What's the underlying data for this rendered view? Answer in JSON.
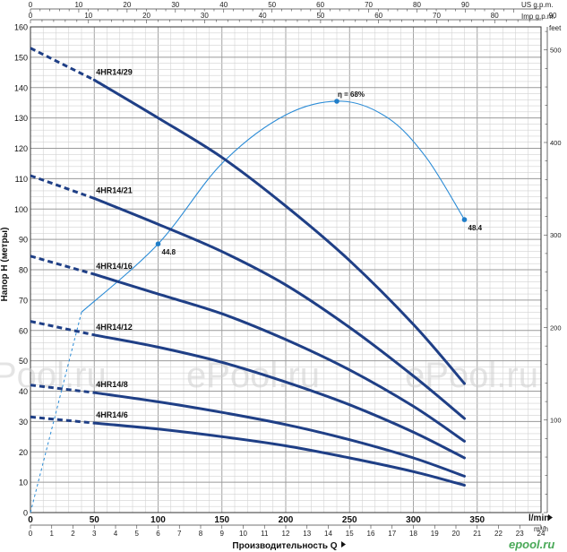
{
  "chart_data": {
    "type": "line",
    "xlabel": "Производительность Q",
    "ylabel": "Напор H (метры)",
    "x_unit_bottom": "l/min",
    "x_unit_m3h": "m³/h",
    "us_label": "US g.p.m.",
    "imp_label": "Imp g.p.m.",
    "feet_label": "feet",
    "xlim_lmin": [
      0,
      400
    ],
    "ylim": [
      0,
      160
    ],
    "grid": true,
    "x_ticks_lmin": [
      "0",
      "50",
      "100",
      "150",
      "200",
      "250",
      "300",
      "350"
    ],
    "y_ticks": [
      "0",
      "10",
      "20",
      "30",
      "40",
      "50",
      "60",
      "70",
      "80",
      "90",
      "100",
      "110",
      "120",
      "130",
      "140",
      "150",
      "160"
    ],
    "feet_ticks": [
      "100",
      "200",
      "300",
      "400",
      "500"
    ],
    "us_ticks": [
      "0",
      "10",
      "20",
      "30",
      "40",
      "50",
      "60",
      "70",
      "80",
      "90"
    ],
    "imp_ticks": [
      "0",
      "10",
      "20",
      "30",
      "40",
      "50",
      "60",
      "70",
      "80",
      "90"
    ],
    "m3h_ticks": [
      "0",
      "1",
      "2",
      "3",
      "4",
      "5",
      "6",
      "7",
      "8",
      "9",
      "10",
      "11",
      "12",
      "13",
      "14",
      "15",
      "16",
      "17",
      "18",
      "19",
      "20",
      "21",
      "22",
      "23",
      "24"
    ],
    "series": [
      {
        "name": "4HR14/29",
        "dashed": {
          "x": [
            0,
            50
          ],
          "y": [
            153,
            142.5
          ]
        },
        "solid": {
          "x": [
            50,
            100,
            150,
            200,
            250,
            300,
            340
          ],
          "y": [
            142.5,
            130,
            117,
            101,
            83,
            62,
            42.5
          ]
        }
      },
      {
        "name": "4HR14/21",
        "dashed": {
          "x": [
            0,
            50
          ],
          "y": [
            111,
            103.5
          ]
        },
        "solid": {
          "x": [
            50,
            100,
            150,
            200,
            250,
            300,
            340
          ],
          "y": [
            103.5,
            95,
            86,
            75,
            61,
            45,
            31
          ]
        }
      },
      {
        "name": "4HR14/16",
        "dashed": {
          "x": [
            0,
            50
          ],
          "y": [
            84.5,
            78.5
          ]
        },
        "solid": {
          "x": [
            50,
            100,
            150,
            200,
            250,
            300,
            340
          ],
          "y": [
            78.5,
            72,
            65.5,
            57,
            47,
            35,
            23.5
          ]
        }
      },
      {
        "name": "4HR14/12",
        "dashed": {
          "x": [
            0,
            50
          ],
          "y": [
            63,
            58.5
          ]
        },
        "solid": {
          "x": [
            50,
            100,
            150,
            200,
            250,
            300,
            340
          ],
          "y": [
            58.5,
            54.5,
            49.5,
            43,
            35.5,
            26.5,
            18
          ]
        }
      },
      {
        "name": "4HR14/8",
        "dashed": {
          "x": [
            0,
            50
          ],
          "y": [
            42,
            39.5
          ]
        },
        "solid": {
          "x": [
            50,
            100,
            150,
            200,
            250,
            300,
            340
          ],
          "y": [
            39.5,
            36.5,
            33,
            29,
            24,
            18,
            12
          ]
        }
      },
      {
        "name": "4HR14/6",
        "dashed": {
          "x": [
            0,
            50
          ],
          "y": [
            31.5,
            29.5
          ]
        },
        "solid": {
          "x": [
            50,
            100,
            150,
            200,
            250,
            300,
            340
          ],
          "y": [
            29.5,
            27.5,
            25,
            22,
            18,
            13.5,
            9
          ]
        }
      }
    ],
    "efficiency": {
      "label": "η = 68%",
      "dashed": {
        "x": [
          0,
          40
        ],
        "y": [
          0,
          66
        ]
      },
      "solid": {
        "x": [
          40,
          100,
          150,
          200,
          244,
          280,
          310,
          340
        ],
        "y": [
          66,
          88.5,
          115,
          131,
          135.5,
          130,
          117,
          96.5
        ]
      },
      "points": [
        {
          "x": 100,
          "y": 88.5,
          "label": "44.8"
        },
        {
          "x": 240,
          "y": 135.5,
          "label": ""
        },
        {
          "x": 340,
          "y": 96.5,
          "label": "48.4"
        }
      ]
    },
    "watermarks": [
      "Pool.ru",
      "ePool.ru",
      "ePool.ru"
    ],
    "logo_text": "epool.ru"
  }
}
